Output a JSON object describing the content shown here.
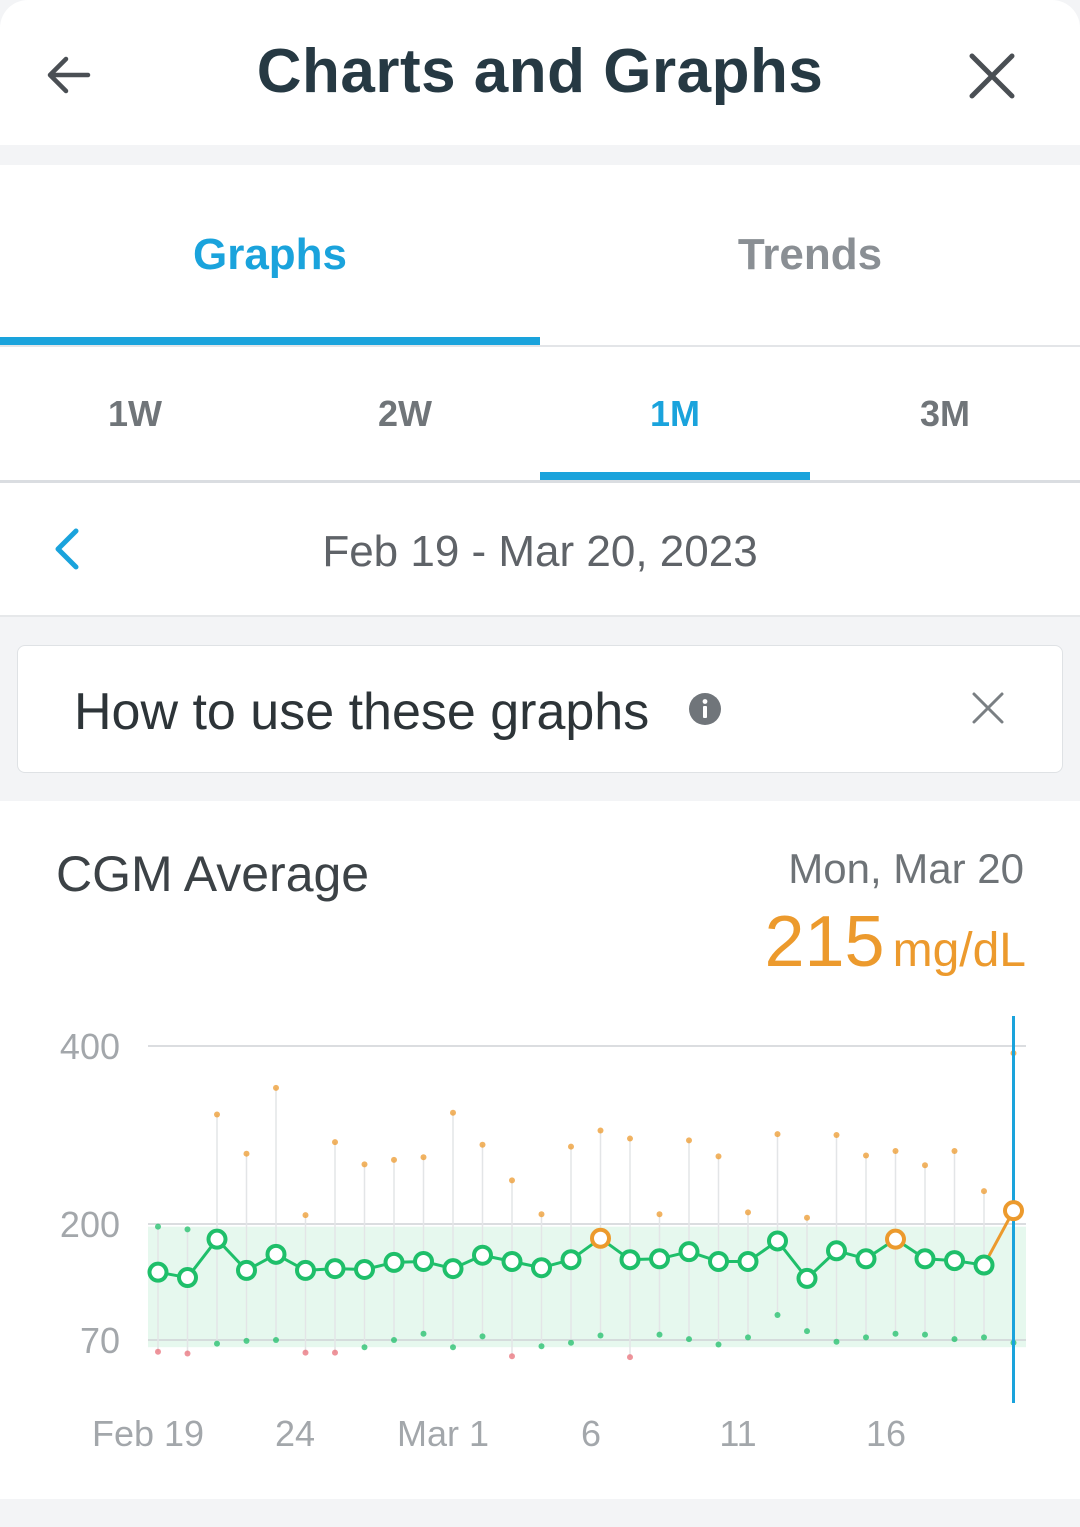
{
  "header": {
    "title": "Charts and Graphs",
    "back_icon": "arrow-left-icon",
    "close_icon": "close-icon"
  },
  "tabs": [
    {
      "label": "Graphs",
      "active": true
    },
    {
      "label": "Trends",
      "active": false
    }
  ],
  "ranges": [
    {
      "label": "1W",
      "active": false
    },
    {
      "label": "2W",
      "active": false
    },
    {
      "label": "1M",
      "active": true
    },
    {
      "label": "3M",
      "active": false
    }
  ],
  "date_range": {
    "label": "Feb 19 - Mar 20, 2023"
  },
  "howto": {
    "label": "How to use these graphs"
  },
  "card": {
    "title": "CGM Average",
    "selected_date": "Mon, Mar 20",
    "selected_value": "215",
    "selected_unit": "mg/dL"
  },
  "colors": {
    "accent": "#1aa3dc",
    "in_range": "#1fbf6a",
    "high": "#ec9a2d",
    "low": "#e8707a",
    "target_band": "#e6f8ee"
  },
  "chart_data": {
    "type": "line",
    "title": "CGM Average",
    "ylabel": "",
    "xlabel": "",
    "y_ticks": [
      400,
      200,
      70
    ],
    "x_tick_labels": [
      "Feb 19",
      "24",
      "Mar 1",
      "6",
      "11",
      "16"
    ],
    "target_range": [
      62,
      197
    ],
    "selected_index": 29,
    "x": [
      "Feb 19",
      "Feb 20",
      "Feb 21",
      "Feb 22",
      "Feb 23",
      "Feb 24",
      "Feb 25",
      "Feb 26",
      "Feb 27",
      "Feb 28",
      "Mar 1",
      "Mar 2",
      "Mar 3",
      "Mar 4",
      "Mar 5",
      "Mar 6",
      "Mar 7",
      "Mar 8",
      "Mar 9",
      "Mar 10",
      "Mar 11",
      "Mar 12",
      "Mar 13",
      "Mar 14",
      "Mar 15",
      "Mar 16",
      "Mar 17",
      "Mar 18",
      "Mar 19",
      "Mar 20"
    ],
    "series": [
      {
        "values": [
          146,
          140,
          183,
          148,
          166,
          148,
          150,
          149,
          157,
          158,
          150,
          165,
          158,
          151,
          160,
          184,
          160,
          161,
          169,
          158,
          158,
          181,
          139,
          170,
          161,
          183,
          161,
          159,
          154,
          215
        ],
        "max": [
          197,
          194,
          323,
          279,
          353,
          210,
          292,
          267,
          272,
          275,
          325,
          289,
          249,
          211,
          287,
          305,
          296,
          211,
          294,
          276,
          213,
          301,
          207,
          300,
          277,
          282,
          266,
          282,
          237,
          392
        ],
        "min": [
          57,
          55,
          66,
          69,
          70,
          56,
          56,
          62,
          70,
          77,
          62,
          74,
          52,
          63,
          67,
          75,
          51,
          76,
          71,
          65,
          73,
          98,
          80,
          68,
          73,
          77,
          76,
          71,
          73,
          67
        ]
      }
    ]
  }
}
